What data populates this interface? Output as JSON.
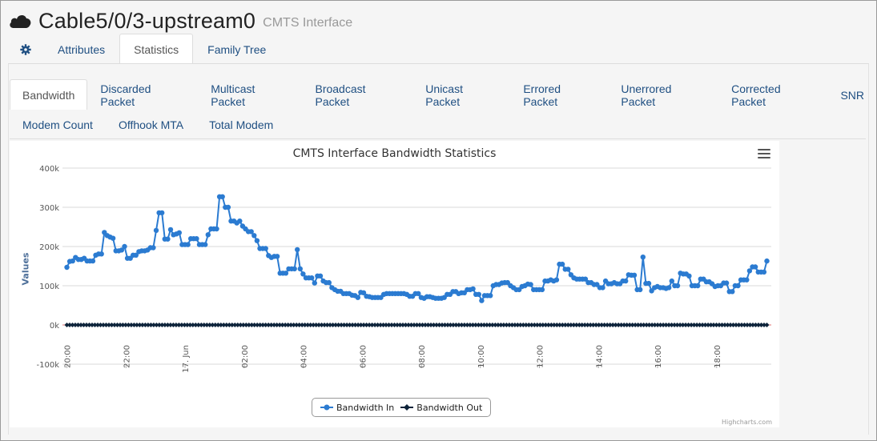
{
  "header": {
    "title": "Cable5/0/3-upstream0",
    "subtitle": "CMTS Interface"
  },
  "tabs": [
    {
      "label": "Attributes"
    },
    {
      "label": "Statistics"
    },
    {
      "label": "Family Tree"
    }
  ],
  "subtabs": [
    {
      "label": "Bandwidth"
    },
    {
      "label": "Discarded Packet"
    },
    {
      "label": "Multicast Packet"
    },
    {
      "label": "Broadcast Packet"
    },
    {
      "label": "Unicast Packet"
    },
    {
      "label": "Errored Packet"
    },
    {
      "label": "Unerrored Packet"
    },
    {
      "label": "Corrected Packet"
    },
    {
      "label": "SNR"
    },
    {
      "label": "Modem Count"
    },
    {
      "label": "Offhook MTA"
    },
    {
      "label": "Total Modem"
    }
  ],
  "colors": {
    "accent": "#2b7bd1",
    "series_out": "#0d233a",
    "link": "#1f4f82",
    "zero_line": "#e07070"
  },
  "chart_data": {
    "type": "line",
    "title": "CMTS Interface Bandwidth Statistics",
    "ylabel": "Values",
    "xlabel": "",
    "ylim": [
      -100000,
      400000
    ],
    "y_ticks": [
      -100000,
      0,
      100000,
      200000,
      300000,
      400000
    ],
    "y_tick_labels": [
      "-100k",
      "0k",
      "100k",
      "200k",
      "300k",
      "400k"
    ],
    "x_start_hours": -4.15,
    "x_end_hours": 19.85,
    "x_ticks": [
      {
        "hours": -4.0,
        "label": "20:00"
      },
      {
        "hours": -2.0,
        "label": "22:00"
      },
      {
        "hours": 0.0,
        "label": "17. Jun"
      },
      {
        "hours": 2.0,
        "label": "02:00"
      },
      {
        "hours": 4.0,
        "label": "04:00"
      },
      {
        "hours": 6.0,
        "label": "06:00"
      },
      {
        "hours": 8.0,
        "label": "08:00"
      },
      {
        "hours": 10.0,
        "label": "10:00"
      },
      {
        "hours": 12.0,
        "label": "12:00"
      },
      {
        "hours": 14.0,
        "label": "14:00"
      },
      {
        "hours": 16.0,
        "label": "16:00"
      },
      {
        "hours": 18.0,
        "label": "18:00"
      }
    ],
    "legend_placement": "bottom-center",
    "grid": true,
    "credits": "Highcharts.com",
    "series": [
      {
        "name": "Bandwidth In",
        "color": "#2b7bd1",
        "marker": "circle",
        "values": [
          147000,
          162000,
          163000,
          172000,
          167000,
          167000,
          170000,
          163000,
          163000,
          163000,
          178000,
          181000,
          181000,
          236000,
          228000,
          224000,
          221000,
          189000,
          189000,
          191000,
          200000,
          170000,
          170000,
          178000,
          178000,
          187000,
          189000,
          189000,
          191000,
          197000,
          197000,
          241000,
          286000,
          286000,
          219000,
          219000,
          243000,
          230000,
          232000,
          235000,
          205000,
          205000,
          205000,
          220000,
          220000,
          220000,
          205000,
          205000,
          205000,
          230000,
          245000,
          245000,
          245000,
          327000,
          327000,
          300000,
          300000,
          265000,
          265000,
          260000,
          265000,
          252000,
          245000,
          238000,
          238000,
          228000,
          215000,
          195000,
          195000,
          195000,
          177000,
          172000,
          175000,
          175000,
          132000,
          132000,
          132000,
          143000,
          143000,
          143000,
          192000,
          143000,
          130000,
          120000,
          120000,
          120000,
          107000,
          125000,
          125000,
          112000,
          108000,
          108000,
          95000,
          90000,
          86000,
          86000,
          80000,
          80000,
          80000,
          76000,
          75000,
          70000,
          83000,
          82000,
          73000,
          72000,
          70000,
          70000,
          70000,
          70000,
          78000,
          80000,
          80000,
          80000,
          80000,
          80000,
          80000,
          80000,
          78000,
          73000,
          73000,
          80000,
          80000,
          70000,
          68000,
          72000,
          72000,
          70000,
          68000,
          68000,
          68000,
          70000,
          78000,
          78000,
          85000,
          85000,
          80000,
          82000,
          82000,
          90000,
          90000,
          92000,
          78000,
          78000,
          62000,
          75000,
          75000,
          75000,
          100000,
          103000,
          103000,
          107000,
          108000,
          108000,
          100000,
          95000,
          90000,
          90000,
          98000,
          100000,
          104000,
          103000,
          90000,
          90000,
          90000,
          90000,
          112000,
          112000,
          115000,
          112000,
          115000,
          155000,
          155000,
          142000,
          142000,
          128000,
          120000,
          117000,
          117000,
          117000,
          117000,
          108000,
          108000,
          103000,
          103000,
          95000,
          95000,
          112000,
          105000,
          105000,
          108000,
          105000,
          105000,
          112000,
          112000,
          128000,
          127000,
          127000,
          90000,
          90000,
          173000,
          106000,
          106000,
          87000,
          95000,
          98000,
          95000,
          95000,
          93000,
          95000,
          112000,
          100000,
          100000,
          132000,
          130000,
          130000,
          125000,
          100000,
          100000,
          100000,
          117000,
          117000,
          110000,
          110000,
          105000,
          98000,
          100000,
          100000,
          107000,
          107000,
          85000,
          85000,
          100000,
          100000,
          115000,
          115000,
          115000,
          138000,
          148000,
          148000,
          135000,
          135000,
          135000,
          163000
        ]
      },
      {
        "name": "Bandwidth Out",
        "color": "#0d233a",
        "marker": "diamond",
        "values": [
          0,
          0,
          0,
          0,
          0,
          0,
          0,
          0,
          0,
          0,
          0,
          0,
          0,
          0,
          0,
          0,
          0,
          0,
          0,
          0,
          0,
          0,
          0,
          0,
          0,
          0,
          0,
          0,
          0,
          0,
          0,
          0,
          0,
          0,
          0,
          0,
          0,
          0,
          0,
          0,
          0,
          0,
          0,
          0,
          0,
          0,
          0,
          0,
          0,
          0,
          0,
          0,
          0,
          0,
          0,
          0,
          0,
          0,
          0,
          0,
          0,
          0,
          0,
          0,
          0,
          0,
          0,
          0,
          0,
          0,
          0,
          0,
          0,
          0,
          0,
          0,
          0,
          0,
          0,
          0,
          0,
          0,
          0,
          0,
          0,
          0,
          0,
          0,
          0,
          0,
          0,
          0,
          0,
          0,
          0,
          0,
          0,
          0,
          0,
          0,
          0,
          0,
          0,
          0,
          0,
          0,
          0,
          0,
          0,
          0,
          0,
          0,
          0,
          0,
          0,
          0,
          0,
          0,
          0,
          0,
          0,
          0,
          0,
          0,
          0,
          0,
          0,
          0,
          0,
          0,
          0,
          0,
          0,
          0,
          0,
          0,
          0,
          0,
          0,
          0,
          0,
          0,
          0,
          0,
          0,
          0,
          0,
          0,
          0,
          0,
          0,
          0,
          0,
          0,
          0,
          0,
          0,
          0,
          0,
          0,
          0,
          0,
          0,
          0,
          0,
          0,
          0,
          0,
          0,
          0,
          0,
          0,
          0,
          0,
          0,
          0,
          0,
          0,
          0,
          0,
          0,
          0,
          0,
          0,
          0,
          0,
          0,
          0,
          0,
          0,
          0,
          0,
          0,
          0,
          0,
          0,
          0,
          0,
          0,
          0,
          0,
          0,
          0,
          0,
          0,
          0,
          0,
          0,
          0,
          0,
          0,
          0,
          0,
          0,
          0,
          0,
          0,
          0,
          0,
          0,
          0,
          0,
          0,
          0,
          0,
          0,
          0,
          0,
          0,
          0,
          0,
          0,
          0,
          0,
          0,
          0,
          0,
          0,
          0,
          0,
          0,
          0,
          0,
          0,
          0,
          0,
          0,
          0,
          0,
          0,
          0
        ]
      }
    ]
  }
}
